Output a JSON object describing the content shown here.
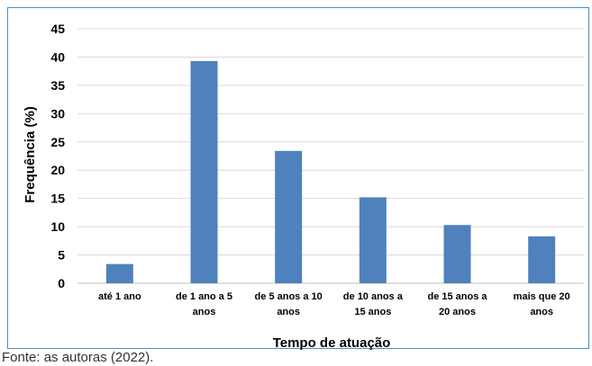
{
  "chart_data": {
    "type": "bar",
    "categories": [
      [
        "até 1 ano"
      ],
      [
        "de 1 ano a 5",
        "anos"
      ],
      [
        "de 5 anos a 10",
        "anos"
      ],
      [
        "de 10 anos a",
        "15 anos"
      ],
      [
        "de 15 anos a",
        "20 anos"
      ],
      [
        "mais que 20",
        "anos"
      ]
    ],
    "values": [
      3.4,
      39.3,
      23.4,
      15.2,
      10.3,
      8.3
    ],
    "xlabel": "Tempo de atuação",
    "ylabel": "Frequência (%)",
    "ylim": [
      0,
      45
    ],
    "yticks": [
      0,
      5,
      10,
      15,
      20,
      25,
      30,
      35,
      40,
      45
    ],
    "grid": true,
    "bar_color": "#4f81bd",
    "grid_color": "#d9d9d9"
  },
  "source": "Fonte: as autoras (2022)."
}
